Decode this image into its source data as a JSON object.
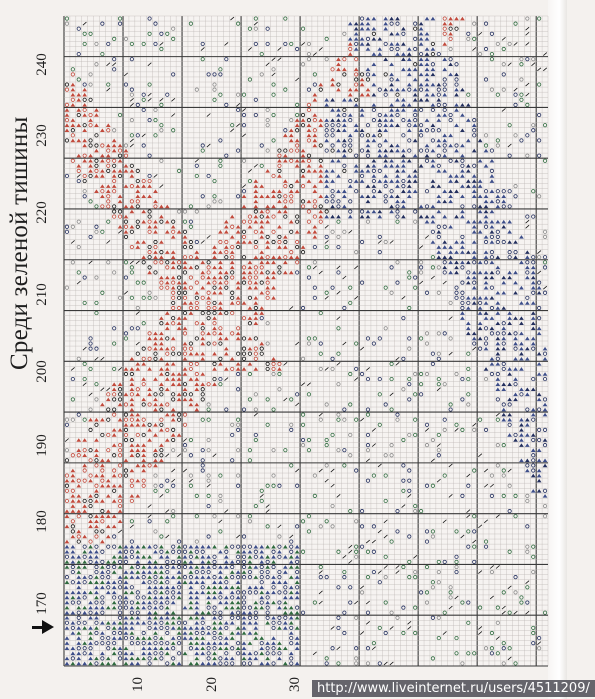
{
  "page": {
    "title": "Среди зеленой тишины",
    "watermark": "http://www.liveinternet.ru/users/4511209/"
  },
  "row_numbers": [
    "170",
    "180",
    "190",
    "200",
    "210",
    "220",
    "230",
    "240"
  ],
  "column_numbers": [
    "10",
    "20",
    "30"
  ],
  "symbols": {
    "red": "#c24a3c",
    "blue": "#3d4e8a",
    "navy": "#232f5e",
    "green": "#2f6b3f",
    "black": "#151515",
    "grid_light": "#b9b3b0",
    "grid_major": "#3a3a3a"
  },
  "chart": {
    "columns": 82,
    "rows": 128
  }
}
